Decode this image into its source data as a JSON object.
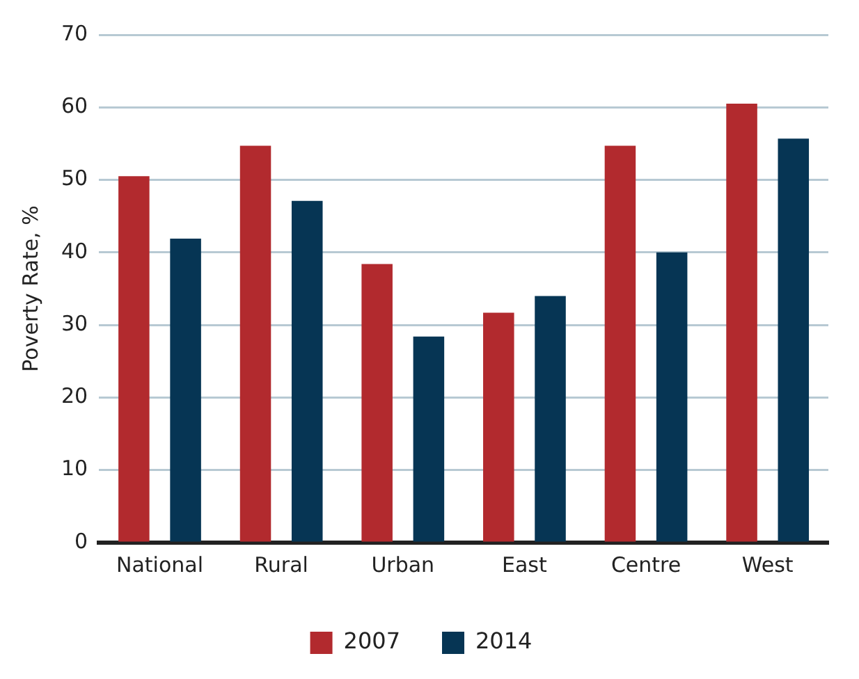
{
  "chart_data": {
    "type": "bar",
    "ylabel": "Poverty Rate, %",
    "categories": [
      "National",
      "Rural",
      "Urban",
      "East",
      "Centre",
      "West"
    ],
    "series": [
      {
        "name": "2007",
        "color": "#b22a2e",
        "values": [
          50.5,
          54.7,
          38.4,
          31.7,
          54.7,
          60.5
        ]
      },
      {
        "name": "2014",
        "color": "#063554",
        "values": [
          41.9,
          47.1,
          28.4,
          34.0,
          40.0,
          55.7
        ]
      }
    ],
    "ylim": [
      0,
      70
    ],
    "yticks": [
      0,
      10,
      20,
      30,
      40,
      50,
      60,
      70
    ],
    "grid": "y",
    "legend": "bottom"
  }
}
